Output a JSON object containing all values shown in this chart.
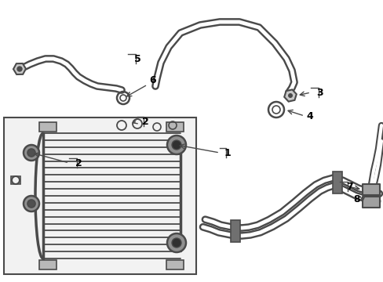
{
  "bg_color": "#ffffff",
  "lc": "#4a4a4a",
  "lc_dark": "#2a2a2a",
  "fig_w": 4.89,
  "fig_h": 3.6,
  "dpi": 100
}
